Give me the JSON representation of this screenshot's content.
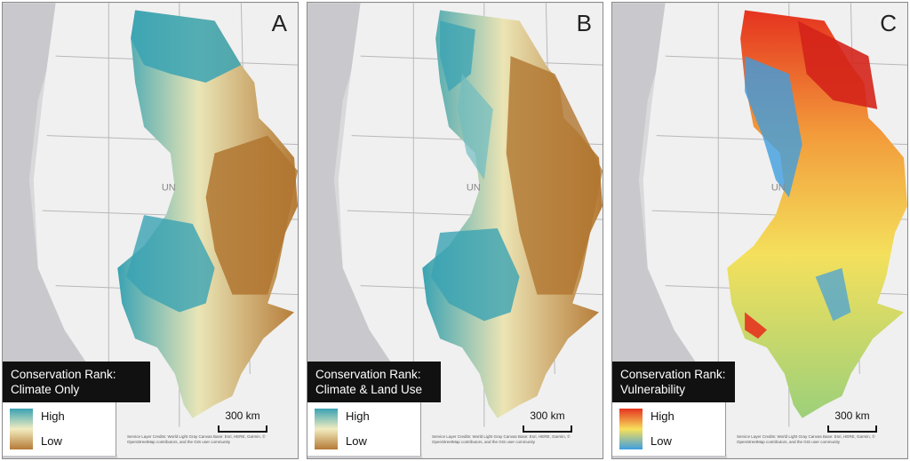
{
  "panels": [
    {
      "letter": "A",
      "title_line1": "Conservation Rank:",
      "title_line2": "Climate Only",
      "legend_high": "High",
      "legend_low": "Low",
      "ramp": [
        "#3aa3b3",
        "#f2ecc0",
        "#b57a36"
      ],
      "scale_label": "300 km",
      "credits": "Service Layer Credits: World Light Gray Canvas Base: Esri, HERE, Garmin, © OpenStreetMap contributors, and the GIS user community"
    },
    {
      "letter": "B",
      "title_line1": "Conservation Rank:",
      "title_line2": "Climate & Land Use",
      "legend_high": "High",
      "legend_low": "Low",
      "ramp": [
        "#3aa3b3",
        "#f2ecc0",
        "#b57a36"
      ],
      "scale_label": "300 km",
      "credits": "Service Layer Credits: World Light Gray Canvas Base: Esri, HERE, Garmin, © OpenStreetMap contributors, and the GIS user community"
    },
    {
      "letter": "C",
      "title_line1": "Conservation Rank:",
      "title_line2": "Vulnerability",
      "legend_high": "High",
      "legend_low": "Low",
      "ramp": [
        "#e5331f",
        "#f7e05a",
        "#3e9ee0"
      ],
      "scale_label": "300 km",
      "credits": "Service Layer Credits: World Light Gray Canvas Base: Esri, HERE, Garmin, © OpenStreetMap contributors, and the GIS user community"
    }
  ],
  "country_label": "UN"
}
